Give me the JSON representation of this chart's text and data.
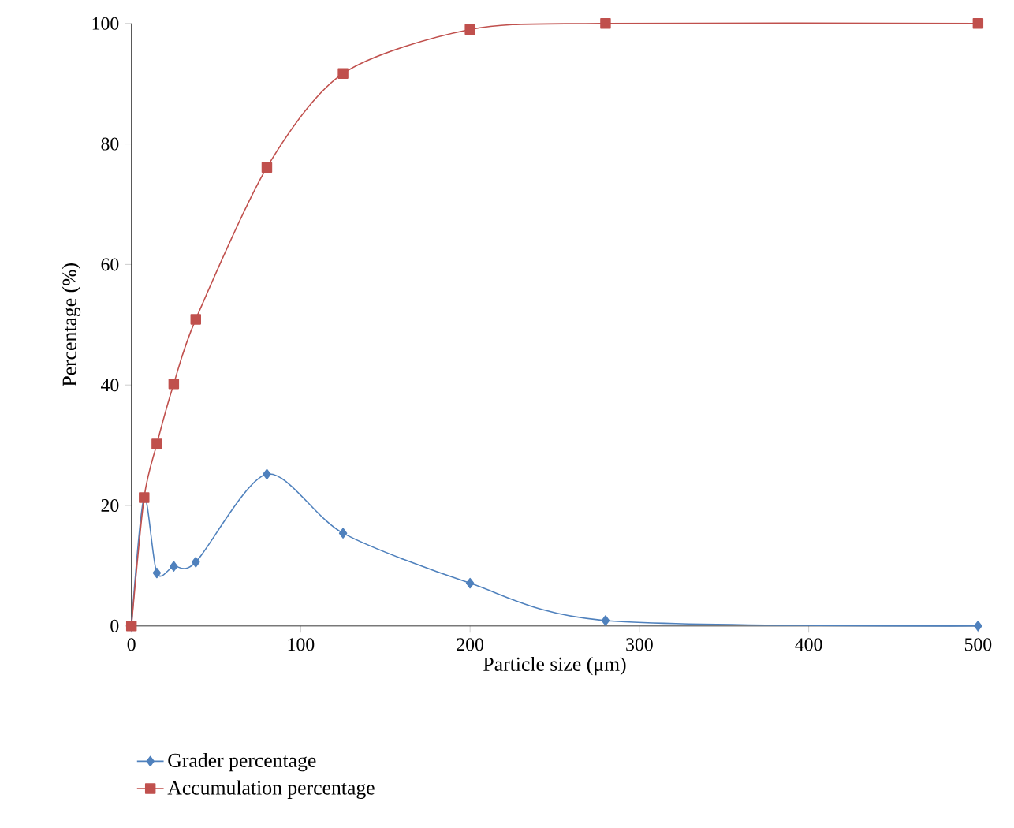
{
  "chart_data": {
    "type": "line",
    "xlabel": "Particle size (μm)",
    "ylabel": "Percentage (%)",
    "xlim": [
      0,
      500
    ],
    "ylim": [
      0,
      100
    ],
    "xticks": [
      0,
      100,
      200,
      300,
      400,
      500
    ],
    "yticks": [
      0,
      20,
      40,
      60,
      80,
      100
    ],
    "legend": "bottom",
    "line_style": "solid",
    "series": [
      {
        "name": "Grader percentage",
        "color": "#4f81bd",
        "marker": "diamond",
        "x": [
          0,
          7.5,
          15,
          25,
          38,
          80,
          125,
          200,
          280,
          500
        ],
        "values": [
          0,
          21.3,
          8.8,
          9.9,
          10.6,
          25.2,
          15.4,
          7.1,
          0.9,
          0
        ]
      },
      {
        "name": "Accumulation percentage",
        "color": "#c0504d",
        "marker": "square",
        "x": [
          0,
          7.5,
          15,
          25,
          38,
          80,
          125,
          200,
          280,
          500
        ],
        "values": [
          0,
          21.3,
          30.2,
          40.2,
          50.9,
          76.1,
          91.7,
          99,
          100,
          100
        ]
      }
    ]
  }
}
